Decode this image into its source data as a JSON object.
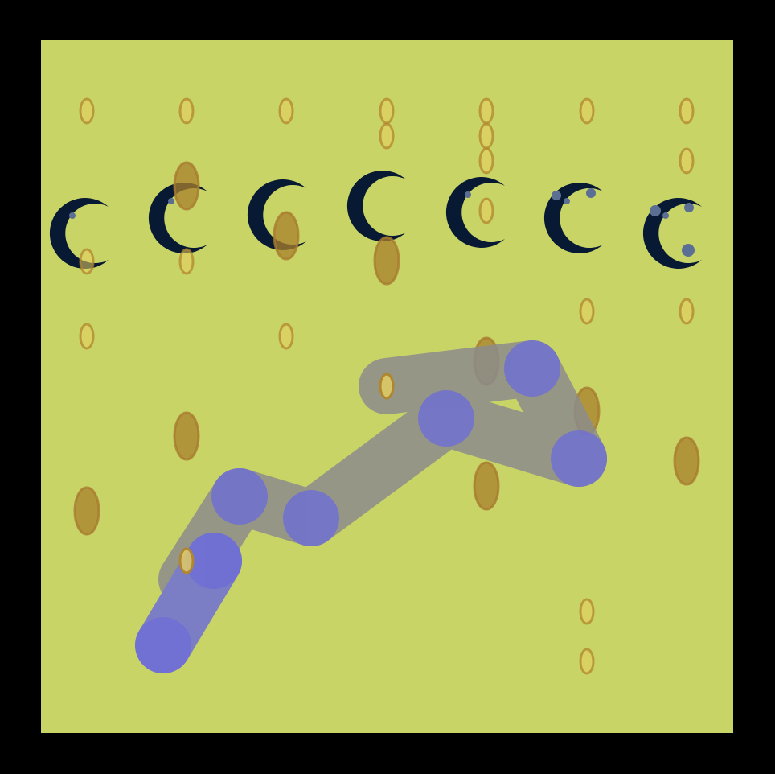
{
  "scene": {
    "description_name": "abstract-pattern",
    "colors": {
      "frame": "#000000",
      "board": "#c9d466",
      "moon": "#081a33",
      "moon_dot": "#5b6f94",
      "oval_fill": "#b08a34",
      "oval_stroke": "#a77a30",
      "small_oval_fill": "#e6d060",
      "bar_gray": "#8c8c8c",
      "bar_blue": "#6e6ed6"
    },
    "moon_count": 7,
    "bar_segment_count": 7
  }
}
